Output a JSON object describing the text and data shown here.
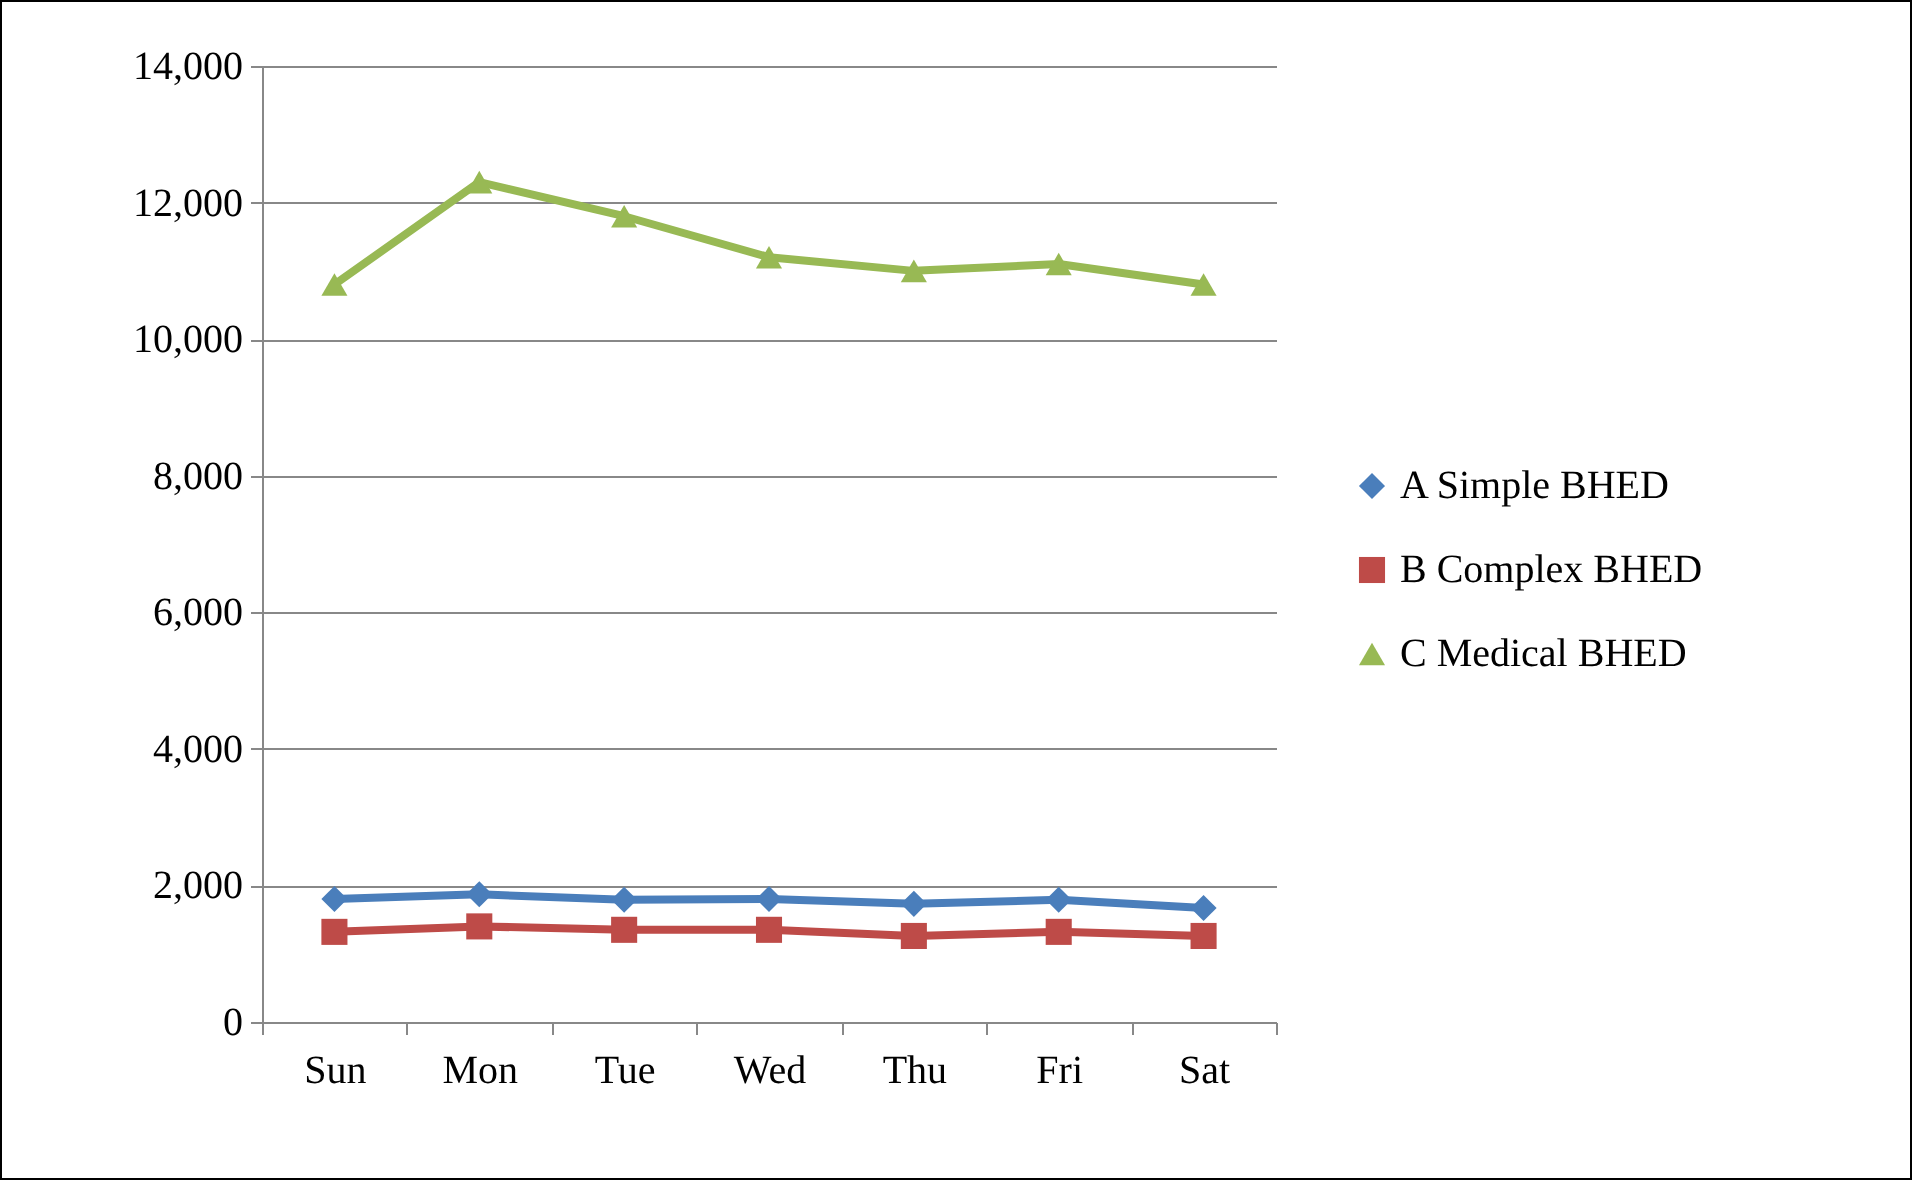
{
  "chart_data": {
    "type": "line",
    "categories": [
      "Sun",
      "Mon",
      "Tue",
      "Wed",
      "Thu",
      "Fri",
      "Sat"
    ],
    "series": [
      {
        "name": "A Simple BHED",
        "color": "#4a7ebb",
        "marker": "diamond",
        "values": [
          1800,
          1870,
          1790,
          1800,
          1730,
          1790,
          1670
        ]
      },
      {
        "name": "B Complex BHED",
        "color": "#be4b48",
        "marker": "square",
        "values": [
          1320,
          1400,
          1350,
          1350,
          1260,
          1320,
          1260
        ]
      },
      {
        "name": "C Medical BHED",
        "color": "#98b954",
        "marker": "triangle",
        "values": [
          10800,
          12300,
          11800,
          11200,
          11000,
          11100,
          10800
        ]
      }
    ],
    "ylim": [
      0,
      14000
    ],
    "yticks": [
      0,
      {
        "value": 2000,
        "label": "2,000"
      },
      {
        "value": 4000,
        "label": "4,000"
      },
      {
        "value": 6000,
        "label": "6,000"
      },
      {
        "value": 8000,
        "label": "8,000"
      },
      {
        "value": 10000,
        "label": "10,000"
      },
      {
        "value": 12000,
        "label": "12,000"
      },
      {
        "value": 14000,
        "label": "14,000"
      }
    ],
    "grid": "y",
    "legend": "right",
    "line_style": "solid"
  }
}
